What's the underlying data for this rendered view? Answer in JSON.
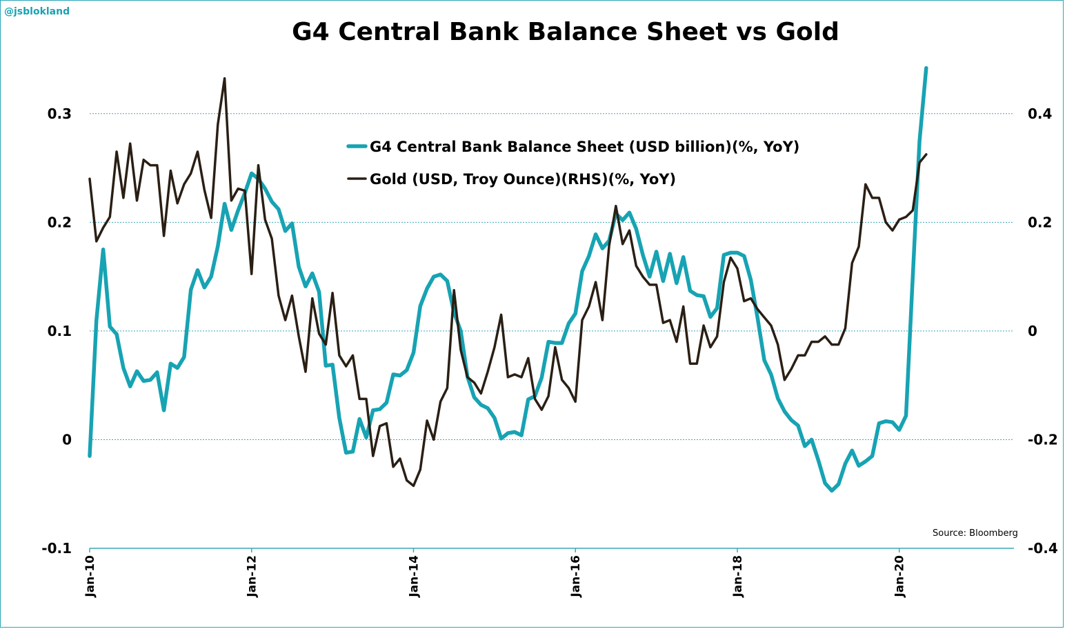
{
  "watermark": "@jsblokland",
  "source": "Source:  Bloomberg",
  "chart_data": {
    "type": "line",
    "title": "G4 Central Bank Balance Sheet vs Gold",
    "grid": true,
    "legend_position": "top-center",
    "x_tick_labels": [
      "Jan-10",
      "Jan-12",
      "Jan-14",
      "Jan-16",
      "Jan-18",
      "Jan-20"
    ],
    "x_range": [
      "2010-01",
      "2021-06"
    ],
    "y_left": {
      "range": [
        -0.1,
        0.35
      ],
      "tick_labels": [
        "0.3",
        "0.2",
        "0.1",
        "0",
        "-0.1"
      ],
      "ticks": [
        0.3,
        0.2,
        0.1,
        0,
        -0.1
      ]
    },
    "y_right": {
      "range": [
        -0.4,
        0.5
      ],
      "tick_labels": [
        "0.4",
        "0.2",
        "0",
        "-0.2",
        "-0.4"
      ],
      "ticks": [
        0.4,
        0.2,
        0,
        -0.2,
        -0.4
      ]
    },
    "series": [
      {
        "name": "G4 Central Bank Balance Sheet (USD billion)(%, YoY)",
        "axis": "left",
        "color": "#17a3b3",
        "start": "2010-01",
        "values": [
          -0.015,
          0.11,
          0.175,
          0.104,
          0.097,
          0.066,
          0.049,
          0.063,
          0.054,
          0.055,
          0.062,
          0.027,
          0.07,
          0.066,
          0.076,
          0.138,
          0.156,
          0.14,
          0.15,
          0.178,
          0.217,
          0.193,
          0.211,
          0.227,
          0.245,
          0.24,
          0.231,
          0.219,
          0.212,
          0.192,
          0.199,
          0.159,
          0.141,
          0.153,
          0.136,
          0.068,
          0.069,
          0.02,
          -0.012,
          -0.011,
          0.019,
          0.002,
          0.027,
          0.028,
          0.034,
          0.06,
          0.059,
          0.064,
          0.08,
          0.123,
          0.139,
          0.15,
          0.152,
          0.146,
          0.117,
          0.1,
          0.058,
          0.039,
          0.032,
          0.029,
          0.02,
          0.001,
          0.006,
          0.007,
          0.004,
          0.037,
          0.04,
          0.057,
          0.09,
          0.089,
          0.089,
          0.107,
          0.116,
          0.155,
          0.169,
          0.189,
          0.176,
          0.183,
          0.208,
          0.202,
          0.209,
          0.194,
          0.17,
          0.15,
          0.173,
          0.146,
          0.171,
          0.144,
          0.168,
          0.137,
          0.133,
          0.132,
          0.113,
          0.121,
          0.17,
          0.172,
          0.172,
          0.169,
          0.147,
          0.112,
          0.073,
          0.06,
          0.038,
          0.026,
          0.018,
          0.013,
          -0.006,
          0,
          -0.019,
          -0.04,
          -0.047,
          -0.041,
          -0.022,
          -0.01,
          -0.024,
          -0.02,
          -0.015,
          0.015,
          0.017,
          0.016,
          0.009,
          0.022,
          0.15,
          0.275,
          0.342
        ]
      },
      {
        "name": "Gold (USD, Troy Ounce)(RHS)(%, YoY)",
        "axis": "right",
        "color": "#2a1f14",
        "start": "2010-01",
        "values": [
          0.28,
          0.165,
          0.19,
          0.21,
          0.33,
          0.245,
          0.345,
          0.24,
          0.315,
          0.305,
          0.305,
          0.175,
          0.295,
          0.235,
          0.27,
          0.29,
          0.33,
          0.26,
          0.208,
          0.38,
          0.465,
          0.24,
          0.262,
          0.258,
          0.105,
          0.305,
          0.205,
          0.17,
          0.065,
          0.02,
          0.065,
          -0.01,
          -0.075,
          0.06,
          -0.005,
          -0.025,
          0.07,
          -0.045,
          -0.065,
          -0.045,
          -0.125,
          -0.125,
          -0.23,
          -0.175,
          -0.17,
          -0.25,
          -0.235,
          -0.275,
          -0.285,
          -0.255,
          -0.165,
          -0.2,
          -0.13,
          -0.105,
          0.075,
          -0.035,
          -0.085,
          -0.095,
          -0.115,
          -0.075,
          -0.03,
          0.03,
          -0.085,
          -0.08,
          -0.085,
          -0.05,
          -0.125,
          -0.145,
          -0.12,
          -0.03,
          -0.09,
          -0.105,
          -0.13,
          0.02,
          0.045,
          0.09,
          0.02,
          0.157,
          0.23,
          0.16,
          0.185,
          0.12,
          0.1,
          0.085,
          0.085,
          0.015,
          0.02,
          -0.02,
          0.045,
          -0.06,
          -0.06,
          0.01,
          -0.03,
          -0.01,
          0.09,
          0.135,
          0.115,
          0.055,
          0.06,
          0.04,
          0.025,
          0.01,
          -0.025,
          -0.09,
          -0.07,
          -0.045,
          -0.045,
          -0.02,
          -0.02,
          -0.01,
          -0.025,
          -0.025,
          0.005,
          0.125,
          0.155,
          0.27,
          0.245,
          0.245,
          0.2,
          0.185,
          0.205,
          0.21,
          0.222,
          0.31,
          0.325
        ]
      }
    ]
  }
}
